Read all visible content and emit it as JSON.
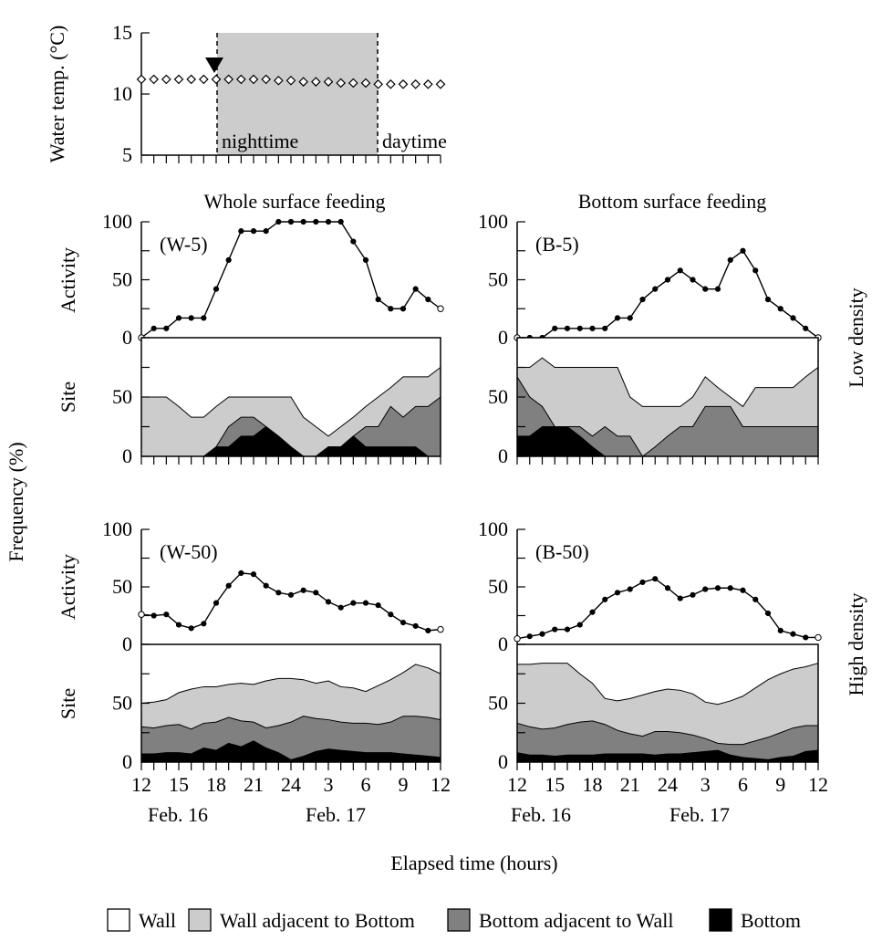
{
  "colors": {
    "wall": "#ffffff",
    "wall_adjacent_to_bottom": "#cccccc",
    "bottom_adjacent_to_wall": "#808080",
    "bottom": "#000000",
    "night_shading": "#cccccc"
  },
  "labels": {
    "ylabel_temp": "Water temp. (°C)",
    "night": "nighttime",
    "day": "daytime",
    "col_left": "Whole surface feeding",
    "col_right": "Bottom surface feeding",
    "row_low": "Low density",
    "row_high": "High density",
    "frequency": "Frequency  (%)",
    "activity": "Activity",
    "site": "Site",
    "xlabel": "Elapsed time (hours)",
    "date1": "Feb. 16",
    "date2": "Feb. 17"
  },
  "legend": [
    {
      "label": "Wall",
      "color": "#ffffff"
    },
    {
      "label": "Wall adjacent to Bottom",
      "color": "#cccccc"
    },
    {
      "label": "Bottom adjacent to Wall",
      "color": "#808080"
    },
    {
      "label": "Bottom",
      "color": "#000000"
    }
  ],
  "chart_data": [
    {
      "id": "temp",
      "type": "line",
      "x_hours": [
        12,
        13,
        14,
        15,
        16,
        17,
        18,
        19,
        20,
        21,
        22,
        23,
        24,
        25,
        26,
        27,
        28,
        29,
        30,
        31,
        32,
        33,
        34,
        35,
        36
      ],
      "values": [
        11.2,
        11.2,
        11.2,
        11.2,
        11.2,
        11.2,
        11.2,
        11.2,
        11.2,
        11.2,
        11.2,
        11.1,
        11.1,
        11.0,
        11.0,
        11.0,
        10.9,
        10.9,
        10.9,
        10.8,
        10.8,
        10.8,
        10.8,
        10.8,
        10.8
      ],
      "ylim": [
        5,
        15
      ],
      "yticks": [
        5,
        10,
        15
      ],
      "night_span": [
        18,
        31
      ],
      "arrow_at": 18
    },
    {
      "id": "W-5",
      "panel_label": "(W-5)",
      "type": "line",
      "x_hours": [
        12,
        13,
        14,
        15,
        16,
        17,
        18,
        19,
        20,
        21,
        22,
        23,
        24,
        25,
        26,
        27,
        28,
        29,
        30,
        31,
        32,
        33,
        34,
        35,
        36
      ],
      "values": [
        0,
        8,
        8,
        17,
        17,
        17,
        42,
        67,
        92,
        92,
        92,
        100,
        100,
        100,
        100,
        100,
        100,
        83,
        67,
        33,
        25,
        25,
        42,
        33,
        25
      ],
      "ylim": [
        0,
        100
      ],
      "yticks": [
        0,
        50,
        100
      ]
    },
    {
      "id": "W-5-site",
      "type": "area",
      "x_hours": [
        12,
        13,
        14,
        15,
        16,
        17,
        18,
        19,
        20,
        21,
        22,
        23,
        24,
        25,
        26,
        27,
        28,
        29,
        30,
        31,
        32,
        33,
        34,
        35,
        36
      ],
      "cumulative": {
        "bottom": [
          0,
          0,
          0,
          0,
          0,
          0,
          8,
          8,
          17,
          17,
          25,
          17,
          8,
          0,
          0,
          8,
          8,
          17,
          8,
          8,
          8,
          8,
          8,
          0,
          0
        ],
        "bottom_adjacent_to_wall": [
          0,
          0,
          0,
          0,
          0,
          0,
          8,
          25,
          33,
          33,
          25,
          17,
          8,
          0,
          0,
          8,
          8,
          17,
          25,
          25,
          42,
          33,
          42,
          42,
          50
        ],
        "wall_adjacent_to_bottom": [
          50,
          50,
          50,
          42,
          33,
          33,
          42,
          50,
          50,
          50,
          50,
          50,
          50,
          33,
          25,
          17,
          25,
          33,
          42,
          50,
          58,
          67,
          67,
          67,
          75
        ]
      },
      "ylim": [
        0,
        100
      ],
      "yticks": [
        0,
        50
      ]
    },
    {
      "id": "B-5",
      "panel_label": "(B-5)",
      "type": "line",
      "x_hours": [
        12,
        13,
        14,
        15,
        16,
        17,
        18,
        19,
        20,
        21,
        22,
        23,
        24,
        25,
        26,
        27,
        28,
        29,
        30,
        31,
        32,
        33,
        34,
        35,
        36
      ],
      "values": [
        0,
        0,
        0,
        8,
        8,
        8,
        8,
        8,
        17,
        17,
        33,
        42,
        50,
        58,
        50,
        42,
        42,
        67,
        75,
        58,
        33,
        25,
        17,
        8,
        0
      ],
      "ylim": [
        0,
        100
      ],
      "yticks": [
        0,
        50,
        100
      ]
    },
    {
      "id": "B-5-site",
      "type": "area",
      "x_hours": [
        12,
        13,
        14,
        15,
        16,
        17,
        18,
        19,
        20,
        21,
        22,
        23,
        24,
        25,
        26,
        27,
        28,
        29,
        30,
        31,
        32,
        33,
        34,
        35,
        36
      ],
      "cumulative": {
        "bottom": [
          17,
          17,
          25,
          25,
          25,
          17,
          8,
          0,
          0,
          0,
          0,
          0,
          0,
          0,
          0,
          0,
          0,
          0,
          0,
          0,
          0,
          0,
          0,
          0,
          0
        ],
        "bottom_adjacent_to_wall": [
          67,
          50,
          42,
          25,
          25,
          25,
          17,
          25,
          17,
          17,
          0,
          8,
          17,
          25,
          25,
          42,
          42,
          42,
          25,
          25,
          25,
          25,
          25,
          25,
          25
        ],
        "wall_adjacent_to_bottom": [
          75,
          75,
          83,
          75,
          75,
          75,
          75,
          75,
          75,
          50,
          42,
          42,
          42,
          42,
          50,
          67,
          58,
          50,
          42,
          58,
          58,
          58,
          58,
          67,
          75
        ]
      },
      "ylim": [
        0,
        100
      ],
      "yticks": [
        0,
        50
      ]
    },
    {
      "id": "W-50",
      "panel_label": "(W-50)",
      "type": "line",
      "x_hours": [
        12,
        13,
        14,
        15,
        16,
        17,
        18,
        19,
        20,
        21,
        22,
        23,
        24,
        25,
        26,
        27,
        28,
        29,
        30,
        31,
        32,
        33,
        34,
        35,
        36
      ],
      "values": [
        26,
        25,
        26,
        17,
        14,
        18,
        36,
        51,
        62,
        61,
        51,
        45,
        43,
        47,
        45,
        37,
        32,
        36,
        36,
        34,
        26,
        19,
        16,
        12,
        13
      ],
      "ylim": [
        0,
        100
      ],
      "yticks": [
        0,
        50,
        100
      ]
    },
    {
      "id": "W-50-site",
      "type": "area",
      "x_hours": [
        12,
        13,
        14,
        15,
        16,
        17,
        18,
        19,
        20,
        21,
        22,
        23,
        24,
        25,
        26,
        27,
        28,
        29,
        30,
        31,
        32,
        33,
        34,
        35,
        36
      ],
      "cumulative": {
        "bottom": [
          7,
          7,
          8,
          8,
          7,
          12,
          10,
          16,
          13,
          18,
          12,
          8,
          2,
          5,
          9,
          11,
          10,
          9,
          8,
          8,
          8,
          7,
          6,
          5,
          4
        ],
        "bottom_adjacent_to_wall": [
          30,
          29,
          31,
          32,
          28,
          33,
          34,
          38,
          35,
          34,
          29,
          31,
          34,
          39,
          37,
          36,
          34,
          33,
          33,
          32,
          34,
          39,
          39,
          38,
          36
        ],
        "wall_adjacent_to_bottom": [
          50,
          51,
          53,
          59,
          62,
          64,
          64,
          66,
          67,
          66,
          69,
          71,
          71,
          70,
          67,
          69,
          64,
          63,
          60,
          65,
          70,
          76,
          83,
          80,
          75
        ]
      },
      "ylim": [
        0,
        100
      ],
      "yticks": [
        0,
        50
      ]
    },
    {
      "id": "B-50",
      "panel_label": "(B-50)",
      "type": "line",
      "x_hours": [
        12,
        13,
        14,
        15,
        16,
        17,
        18,
        19,
        20,
        21,
        22,
        23,
        24,
        25,
        26,
        27,
        28,
        29,
        30,
        31,
        32,
        33,
        34,
        35,
        36
      ],
      "values": [
        5,
        7,
        9,
        13,
        13,
        17,
        28,
        39,
        45,
        48,
        54,
        57,
        49,
        40,
        43,
        48,
        49,
        49,
        47,
        39,
        27,
        12,
        9,
        6,
        6
      ],
      "ylim": [
        0,
        100
      ],
      "yticks": [
        0,
        50,
        100
      ]
    },
    {
      "id": "B-50-site",
      "type": "area",
      "x_hours": [
        12,
        13,
        14,
        15,
        16,
        17,
        18,
        19,
        20,
        21,
        22,
        23,
        24,
        25,
        26,
        27,
        28,
        29,
        30,
        31,
        32,
        33,
        34,
        35,
        36
      ],
      "cumulative": {
        "bottom": [
          8,
          6,
          6,
          5,
          6,
          6,
          6,
          7,
          7,
          7,
          7,
          6,
          7,
          7,
          8,
          9,
          10,
          6,
          4,
          3,
          2,
          4,
          5,
          9,
          10
        ],
        "bottom_adjacent_to_wall": [
          33,
          30,
          28,
          29,
          32,
          34,
          35,
          32,
          27,
          24,
          22,
          26,
          26,
          25,
          23,
          20,
          16,
          15,
          15,
          18,
          21,
          25,
          29,
          31,
          31
        ],
        "wall_adjacent_to_bottom": [
          83,
          83,
          84,
          84,
          84,
          75,
          67,
          54,
          52,
          54,
          57,
          60,
          62,
          61,
          58,
          51,
          49,
          52,
          56,
          63,
          70,
          75,
          79,
          81,
          84
        ]
      },
      "ylim": [
        0,
        100
      ],
      "yticks": [
        0,
        50
      ]
    }
  ],
  "x_ticks": {
    "labeled_hours": [
      12,
      15,
      18,
      21,
      24,
      27,
      30,
      33,
      36
    ],
    "labels": [
      "12",
      "15",
      "18",
      "21",
      "24",
      "3",
      "6",
      "9",
      "12"
    ],
    "temp_labeled_hours": [],
    "temp_labels": []
  }
}
